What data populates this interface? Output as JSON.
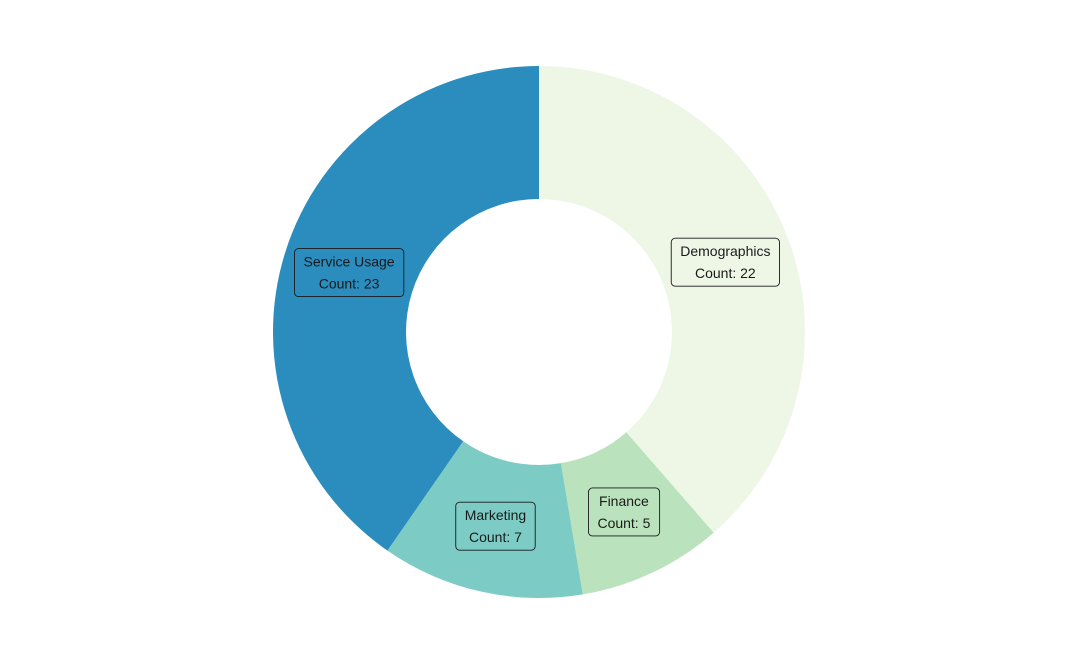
{
  "chart_data": {
    "type": "pie",
    "variant": "donut",
    "count_prefix": "Count: ",
    "slices": [
      {
        "name": "Demographics",
        "value": 22,
        "color": "#EEF7E6"
      },
      {
        "name": "Finance",
        "value": 5,
        "color": "#BAE3BD"
      },
      {
        "name": "Marketing",
        "value": 7,
        "color": "#7CCCC5"
      },
      {
        "name": "Service Usage",
        "value": 23,
        "color": "#2B8CBE"
      }
    ],
    "start_angle": "12 o'clock",
    "direction": "clockwise",
    "legend": "none"
  }
}
